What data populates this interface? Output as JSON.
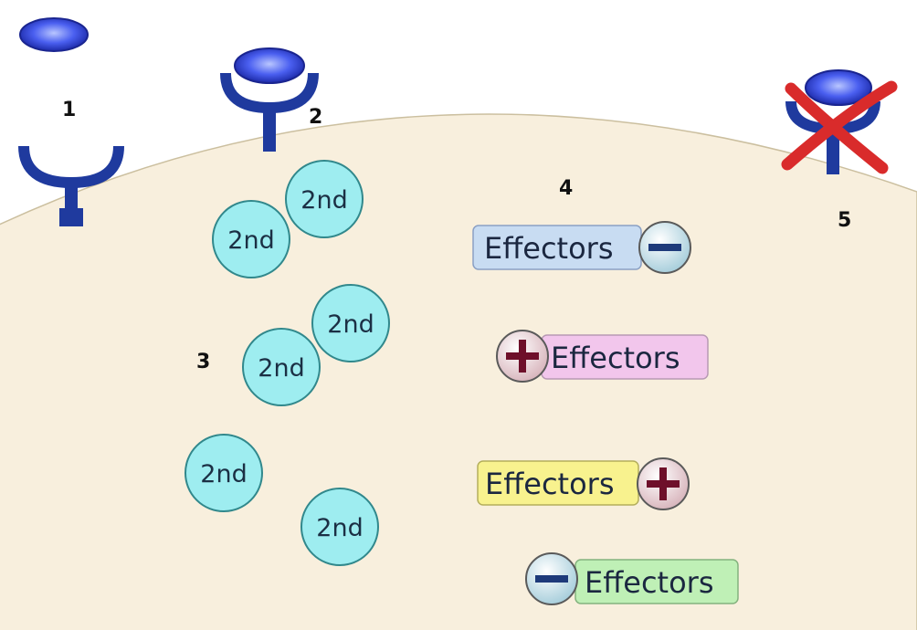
{
  "colors": {
    "background": "#ffffff",
    "cell_fill": "#f8efdd",
    "cell_edge": "#cbbf9f",
    "receptor": "#1f3a9e",
    "ligand": "#3f55e6",
    "second_messenger": "#9eedf0",
    "second_messenger_edge": "#31888c",
    "cross": "#d92b2b",
    "sign_edge": "#5a5a5a"
  },
  "steps": [
    "1",
    "2",
    "3",
    "4",
    "5"
  ],
  "second_messengers": [
    {
      "label": "2nd"
    },
    {
      "label": "2nd"
    },
    {
      "label": "2nd"
    },
    {
      "label": "2nd"
    },
    {
      "label": "2nd"
    },
    {
      "label": "2nd"
    }
  ],
  "effectors": [
    {
      "label": "Effectors",
      "sign": "−",
      "box_color": "#c8dcf2",
      "sign_color": "#c9e4ee",
      "sign_side": "right"
    },
    {
      "label": "Effectors",
      "sign": "+",
      "box_color": "#f2c6ec",
      "sign_color": "#eedadc",
      "sign_side": "left"
    },
    {
      "label": "Effectors",
      "sign": "+",
      "box_color": "#f8f28e",
      "sign_color": "#eedadc",
      "sign_side": "right"
    },
    {
      "label": "Effectors",
      "sign": "−",
      "box_color": "#bff0b6",
      "sign_color": "#c9e4ee",
      "sign_side": "left"
    }
  ],
  "icons": [
    "ligand-icon",
    "receptor-icon",
    "cross-icon",
    "plus-sign-icon",
    "minus-sign-icon"
  ]
}
